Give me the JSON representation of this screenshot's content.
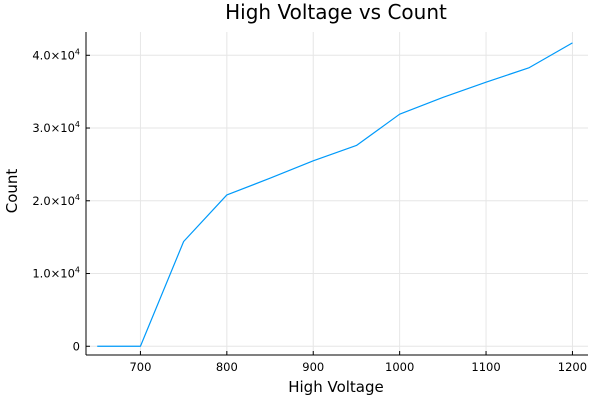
{
  "chart_data": {
    "type": "line",
    "title": "High Voltage vs Count",
    "xlabel": "High Voltage",
    "ylabel": "Count",
    "x": [
      650,
      700,
      750,
      800,
      850,
      900,
      950,
      1000,
      1050,
      1100,
      1150,
      1200
    ],
    "series": [
      {
        "values": [
          0,
          0,
          14400,
          20800,
          23100,
          25500,
          27600,
          31900,
          34200,
          36300,
          38300,
          41700
        ]
      }
    ],
    "xlim": [
      637,
      1218
    ],
    "ylim": [
      -1200,
      43200
    ],
    "xticks": [
      700,
      800,
      900,
      1000,
      1100,
      1200
    ],
    "xtick_labels": [
      "700",
      "800",
      "900",
      "1000",
      "1100",
      "1200"
    ],
    "yticks": [
      0,
      10000,
      20000,
      30000,
      40000
    ],
    "ytick_labels": [
      {
        "mantissa": "0",
        "exp": ""
      },
      {
        "mantissa": "1.0×10",
        "exp": "4"
      },
      {
        "mantissa": "2.0×10",
        "exp": "4"
      },
      {
        "mantissa": "3.0×10",
        "exp": "4"
      },
      {
        "mantissa": "4.0×10",
        "exp": "4"
      }
    ],
    "grid": true,
    "legend": "none",
    "line_color": "#009AFA"
  }
}
